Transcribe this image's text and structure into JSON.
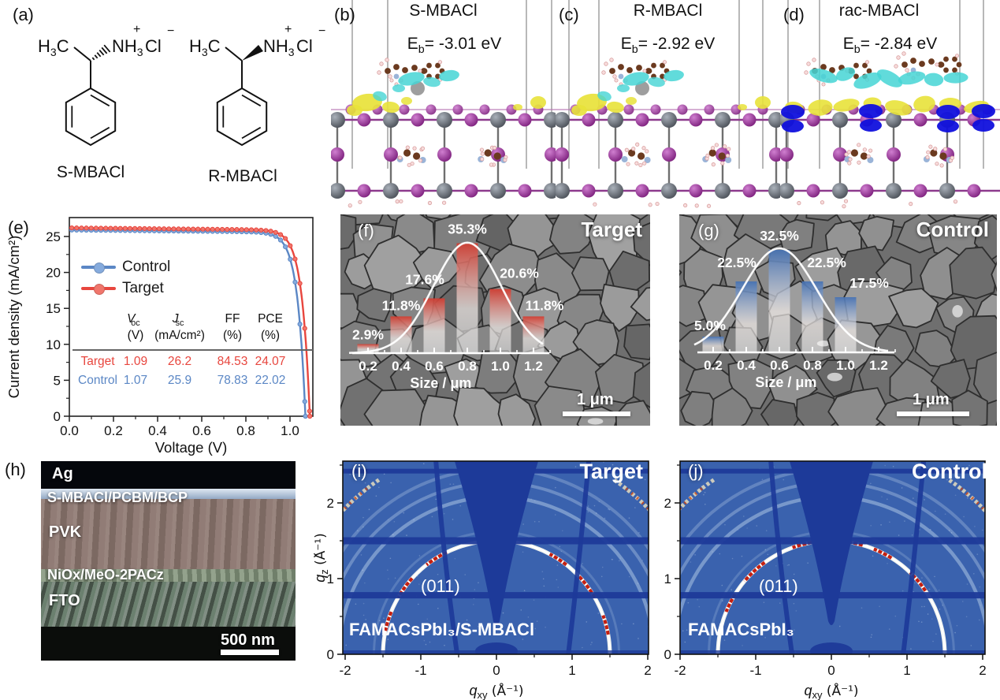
{
  "panels": {
    "a": {
      "label": "(a)",
      "molecules": [
        {
          "name": "S-MBACl",
          "methyl_main": "H",
          "methyl_sub": "3",
          "methyl_tail": "C",
          "amine_main": "NH",
          "amine_sub": "3",
          "amine_sup": "+",
          "chloride": "Cl",
          "chloride_sup": "−",
          "stereo_bond": "hashed"
        },
        {
          "name": "R-MBACl",
          "methyl_main": "H",
          "methyl_sub": "3",
          "methyl_tail": "C",
          "amine_main": "NH",
          "amine_sub": "3",
          "amine_sup": "+",
          "chloride": "Cl",
          "chloride_sup": "−",
          "stereo_bond": "wedge"
        }
      ]
    },
    "b": {
      "label": "(b)",
      "title": "S-MBACl",
      "eb_main": "E",
      "eb_sub": "b",
      "eb_rest": "= -3.01 eV"
    },
    "c": {
      "label": "(c)",
      "title": "R-MBACl",
      "eb_main": "E",
      "eb_sub": "b",
      "eb_rest": "= -2.92 eV"
    },
    "d": {
      "label": "(d)",
      "title": "rac-MBACl",
      "eb_main": "E",
      "eb_sub": "b",
      "eb_rest": "= -2.84 eV"
    },
    "h": {
      "label": "(h)",
      "layers": [
        {
          "name": "Ag",
          "color": "#05070c"
        },
        {
          "name": "S-MBACl/PCBM/BCP",
          "color": "#a9bcd2"
        },
        {
          "name": "PVK",
          "color": "#8d7770"
        },
        {
          "name": "NiOx/MeO-2PACz",
          "color": "#84957c"
        },
        {
          "name": "FTO",
          "color": "#5e6f61"
        }
      ],
      "scale_bar": "500 nm"
    }
  },
  "chart_data": [
    {
      "id": "e",
      "type": "line",
      "panel_label": "(e)",
      "xlabel": "Voltage (V)",
      "ylabel": "Current density (mA/cm²)",
      "xlim": [
        0.0,
        1.1
      ],
      "ylim": [
        0,
        27.5
      ],
      "x_ticks": [
        "0.0",
        "0.2",
        "0.4",
        "0.6",
        "0.8",
        "1.0"
      ],
      "y_ticks": [
        0,
        5,
        10,
        15,
        20,
        25
      ],
      "legend_position": "upper-left",
      "grid": false,
      "series": [
        {
          "name": "Control",
          "color": "#5b87c5",
          "marker_fill": "#86abdd",
          "jsc": 25.9,
          "voc": 1.07
        },
        {
          "name": "Target",
          "color": "#e8463e",
          "marker_fill": "#f0766c",
          "jsc": 26.2,
          "voc": 1.09
        }
      ],
      "table": {
        "headers": [
          {
            "main": "V",
            "sub": "oc",
            "unit": "(V)"
          },
          {
            "main": "J",
            "sub": "sc",
            "unit": "(mA/cm²)"
          },
          {
            "main": "FF",
            "sub": "",
            "unit": "(%)"
          },
          {
            "main": "PCE",
            "sub": "",
            "unit": "(%)"
          }
        ],
        "rows": [
          {
            "name": "Target",
            "color": "#e8463e",
            "values": [
              "1.09",
              "26.2",
              "84.53",
              "24.07"
            ]
          },
          {
            "name": "Control",
            "color": "#5b87c5",
            "values": [
              "1.07",
              "25.9",
              "78.83",
              "22.02"
            ]
          }
        ]
      }
    },
    {
      "id": "f",
      "type": "bar",
      "panel_label": "(f)",
      "title": "Target",
      "xlabel": "Size / μm",
      "x_ticks": [
        "0.2",
        "0.4",
        "0.6",
        "0.8",
        "1.0",
        "1.2"
      ],
      "bars": [
        {
          "x": 0.2,
          "value": 2.9,
          "label": "2.9%"
        },
        {
          "x": 0.4,
          "value": 11.8,
          "label": "11.8%"
        },
        {
          "x": 0.6,
          "value": 17.6,
          "label": "17.6%"
        },
        {
          "x": 0.8,
          "value": 35.3,
          "label": "35.3%"
        },
        {
          "x": 1.0,
          "value": 20.6,
          "label": "20.6%"
        },
        {
          "x": 1.2,
          "value": 11.8,
          "label": "11.8%"
        }
      ],
      "bar_color_top": "#d23c30",
      "curve": {
        "center": 0.8,
        "sigma": 0.205,
        "peak": 35.5
      },
      "scale_bar": "1 μm"
    },
    {
      "id": "g",
      "type": "bar",
      "panel_label": "(g)",
      "title": "Control",
      "xlabel": "Size / μm",
      "x_ticks": [
        "0.2",
        "0.4",
        "0.6",
        "0.8",
        "1.0",
        "1.2"
      ],
      "bars": [
        {
          "x": 0.2,
          "value": 5.0,
          "label": "5.0%"
        },
        {
          "x": 0.4,
          "value": 22.5,
          "label": "22.5%"
        },
        {
          "x": 0.6,
          "value": 32.5,
          "label": "32.5%"
        },
        {
          "x": 0.8,
          "value": 22.5,
          "label": "22.5%"
        },
        {
          "x": 1.0,
          "value": 17.5,
          "label": "17.5%"
        }
      ],
      "bar_color_top": "#4672b4",
      "curve": {
        "center": 0.6,
        "sigma": 0.225,
        "peak": 33.0
      },
      "scale_bar": "1 μm"
    },
    {
      "id": "i",
      "type": "heatmap",
      "panel_label": "(i)",
      "title": "Target",
      "sample": "FAMACsPbI₃/S-MBACl",
      "ring_label": "(011)",
      "xlabel_main": "q",
      "xlabel_sub": "xy",
      "xlabel_unit": " (Å⁻¹)",
      "ylabel_main": "q",
      "ylabel_sub": "z",
      "ylabel_unit": " (Å⁻¹)",
      "x_ticks": [
        -2,
        -1,
        0,
        1,
        2
      ],
      "y_ticks": [
        0,
        1,
        2
      ],
      "xlim": [
        -2,
        2
      ],
      "ylim": [
        0,
        2.55
      ],
      "main_ring_q": 1.5,
      "colors": {
        "bg": "#3a62ae",
        "gap": "#1d3a99",
        "ring": "#f0f3ef",
        "hot": "#c41f10"
      }
    },
    {
      "id": "j",
      "type": "heatmap",
      "panel_label": "(j)",
      "title": "Control",
      "sample": "FAMACsPbI₃",
      "ring_label": "(011)",
      "xlabel_main": "q",
      "xlabel_sub": "xy",
      "xlabel_unit": " (Å⁻¹)",
      "ylabel_main": "q",
      "ylabel_sub": "z",
      "ylabel_unit": " (Å⁻¹)",
      "x_ticks": [
        -2,
        -1,
        0,
        1,
        2
      ],
      "y_ticks": [
        0,
        1,
        2
      ],
      "xlim": [
        -2,
        2
      ],
      "ylim": [
        0,
        2.55
      ],
      "main_ring_q": 1.5,
      "colors": {
        "bg": "#3a62ae",
        "gap": "#1d3a99",
        "ring": "#f0f3ef",
        "hot": "#c41f10"
      }
    }
  ]
}
